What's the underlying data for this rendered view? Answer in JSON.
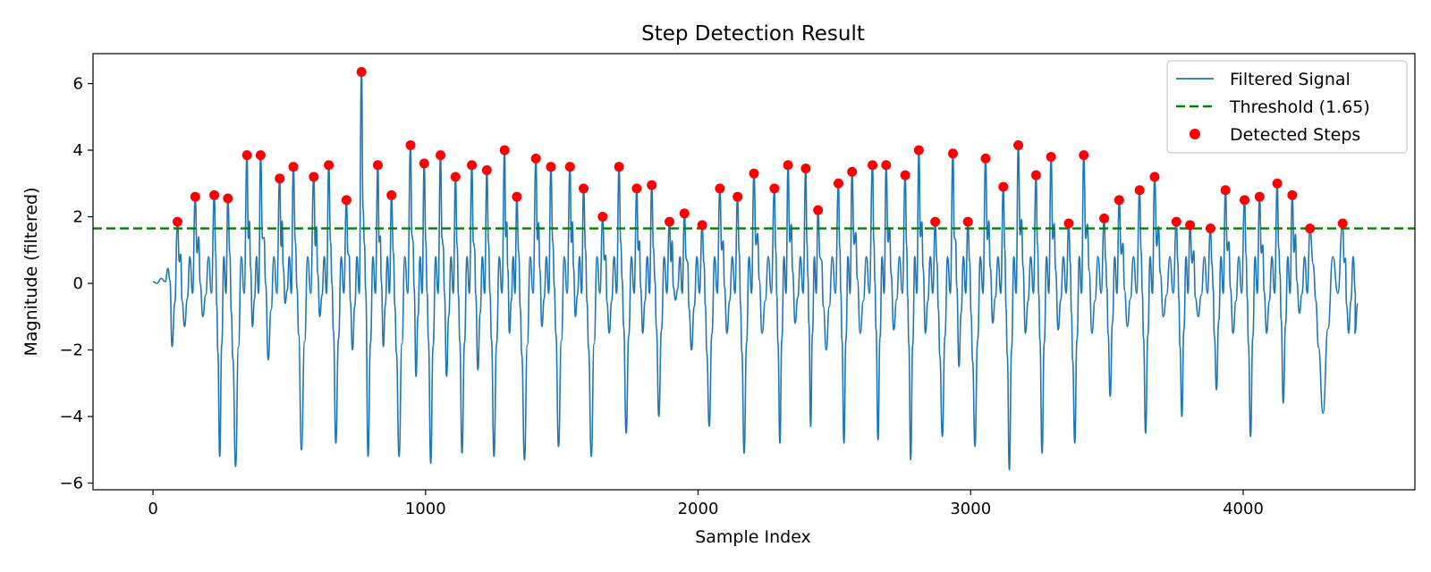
{
  "chart_data": {
    "type": "line",
    "title": "Step Detection Result",
    "xlabel": "Sample Index",
    "ylabel": "Magnitude (filtered)",
    "xlim": [
      -220,
      4630
    ],
    "ylim": [
      -6.2,
      6.9
    ],
    "xticks": [
      0,
      1000,
      2000,
      3000,
      4000
    ],
    "xtick_labels": [
      "0",
      "1000",
      "2000",
      "3000",
      "4000"
    ],
    "yticks": [
      -6,
      -4,
      -2,
      0,
      2,
      4,
      6
    ],
    "ytick_labels": [
      "−6",
      "−4",
      "−2",
      "0",
      "2",
      "4",
      "6"
    ],
    "grid": false,
    "legend_position": "top-right",
    "colors": {
      "signal": "#1f77b4",
      "threshold": "#008000",
      "steps": "#ff0000"
    },
    "threshold": {
      "name": "Threshold (1.65)",
      "value": 1.65
    },
    "signal": {
      "name": "Filtered Signal",
      "x_start": 0,
      "x_end": 4420,
      "initial": [
        [
          0,
          0.05
        ],
        [
          15,
          0.0
        ],
        [
          30,
          0.15
        ],
        [
          45,
          0.05
        ],
        [
          55,
          0.45
        ],
        [
          62,
          0.1
        ],
        [
          70,
          -1.9
        ],
        [
          80,
          -0.6
        ],
        [
          90,
          1.85
        ]
      ]
    },
    "detected_steps": {
      "name": "Detected Steps",
      "x": [
        90,
        155,
        225,
        275,
        345,
        395,
        465,
        515,
        590,
        645,
        710,
        765,
        825,
        875,
        945,
        995,
        1055,
        1110,
        1170,
        1225,
        1290,
        1335,
        1405,
        1460,
        1530,
        1580,
        1650,
        1710,
        1775,
        1830,
        1895,
        1950,
        2015,
        2080,
        2145,
        2205,
        2280,
        2330,
        2395,
        2440,
        2515,
        2565,
        2640,
        2690,
        2760,
        2810,
        2870,
        2935,
        2990,
        3055,
        3120,
        3175,
        3240,
        3295,
        3360,
        3415,
        3490,
        3545,
        3620,
        3675,
        3755,
        3805,
        3880,
        3935,
        4005,
        4060,
        4125,
        4180,
        4245,
        4365
      ],
      "y": [
        1.85,
        2.6,
        2.65,
        2.55,
        3.85,
        3.85,
        3.15,
        3.5,
        3.2,
        3.55,
        2.5,
        6.35,
        3.55,
        2.65,
        4.15,
        3.6,
        3.85,
        3.2,
        3.55,
        3.4,
        4.0,
        2.6,
        3.75,
        3.5,
        3.5,
        2.85,
        2.0,
        3.5,
        2.85,
        2.95,
        1.85,
        2.1,
        1.75,
        2.85,
        2.6,
        3.3,
        2.85,
        3.55,
        3.45,
        2.2,
        3.0,
        3.35,
        3.55,
        3.55,
        3.25,
        4.0,
        1.85,
        3.9,
        1.85,
        3.75,
        2.9,
        4.15,
        3.25,
        3.8,
        1.8,
        3.85,
        1.95,
        2.5,
        2.8,
        3.2,
        1.85,
        1.75,
        1.65,
        2.8,
        2.5,
        2.6,
        3.0,
        2.65,
        1.65,
        1.8
      ]
    },
    "legend": [
      "Filtered Signal",
      "Threshold (1.65)",
      "Detected Steps"
    ]
  }
}
